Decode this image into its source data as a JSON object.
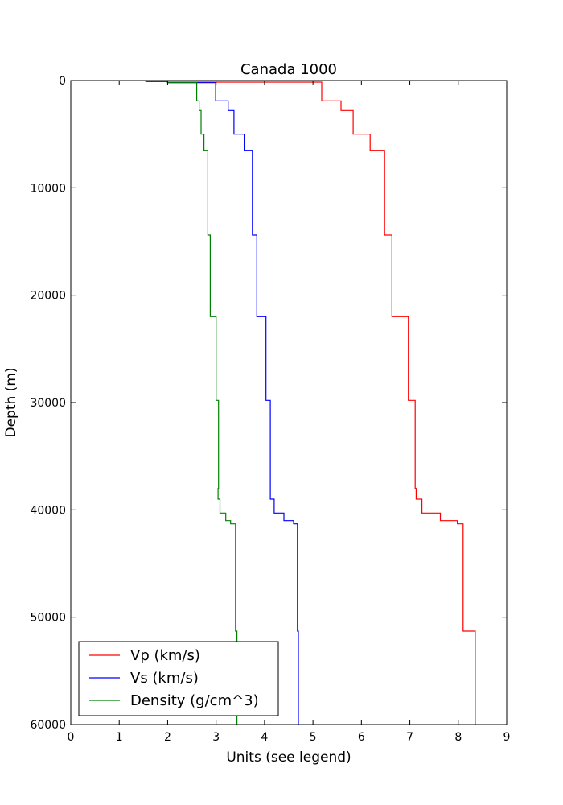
{
  "chart_data": {
    "type": "line",
    "title": "Canada 1000",
    "xlabel": "Units (see legend)",
    "ylabel": "Depth (m)",
    "xlim": [
      0,
      9
    ],
    "ylim": [
      0,
      60000
    ],
    "y_inverted": true,
    "xticks": [
      0,
      1,
      2,
      3,
      4,
      5,
      6,
      7,
      8,
      9
    ],
    "yticks": [
      0,
      10000,
      20000,
      30000,
      40000,
      50000,
      60000
    ],
    "grid": false,
    "legend_position": "lower-left",
    "series": [
      {
        "name": "Vp (km/s)",
        "color": "#ff0000",
        "layers": [
          {
            "top": 0,
            "bottom": 150,
            "value": 2.0
          },
          {
            "top": 150,
            "bottom": 1900,
            "value": 5.18
          },
          {
            "top": 1900,
            "bottom": 2800,
            "value": 5.58
          },
          {
            "top": 2800,
            "bottom": 5000,
            "value": 5.83
          },
          {
            "top": 5000,
            "bottom": 6500,
            "value": 6.18
          },
          {
            "top": 6500,
            "bottom": 14400,
            "value": 6.48
          },
          {
            "top": 14400,
            "bottom": 22000,
            "value": 6.63
          },
          {
            "top": 22000,
            "bottom": 29800,
            "value": 6.97
          },
          {
            "top": 29800,
            "bottom": 38000,
            "value": 7.11
          },
          {
            "top": 38000,
            "bottom": 39000,
            "value": 7.13
          },
          {
            "top": 39000,
            "bottom": 40300,
            "value": 7.25
          },
          {
            "top": 40300,
            "bottom": 41000,
            "value": 7.63
          },
          {
            "top": 41000,
            "bottom": 41300,
            "value": 7.98
          },
          {
            "top": 41300,
            "bottom": 51300,
            "value": 8.1
          },
          {
            "top": 51300,
            "bottom": 60000,
            "value": 8.35
          }
        ]
      },
      {
        "name": "Vs (km/s)",
        "color": "#0000ff",
        "layers": [
          {
            "top": 0,
            "bottom": 100,
            "value": 1.55
          },
          {
            "top": 100,
            "bottom": 200,
            "value": 2.0
          },
          {
            "top": 200,
            "bottom": 1900,
            "value": 2.99
          },
          {
            "top": 1900,
            "bottom": 2800,
            "value": 3.25
          },
          {
            "top": 2800,
            "bottom": 5000,
            "value": 3.37
          },
          {
            "top": 5000,
            "bottom": 6500,
            "value": 3.58
          },
          {
            "top": 6500,
            "bottom": 14400,
            "value": 3.75
          },
          {
            "top": 14400,
            "bottom": 22000,
            "value": 3.84
          },
          {
            "top": 22000,
            "bottom": 29800,
            "value": 4.03
          },
          {
            "top": 29800,
            "bottom": 39000,
            "value": 4.12
          },
          {
            "top": 39000,
            "bottom": 40300,
            "value": 4.2
          },
          {
            "top": 40300,
            "bottom": 41000,
            "value": 4.4
          },
          {
            "top": 41000,
            "bottom": 41300,
            "value": 4.6
          },
          {
            "top": 41300,
            "bottom": 51300,
            "value": 4.68
          },
          {
            "top": 51300,
            "bottom": 60000,
            "value": 4.7
          }
        ]
      },
      {
        "name": "Density (g/cm^3)",
        "color": "#008000",
        "layers": [
          {
            "top": 0,
            "bottom": 200,
            "value": 2.0
          },
          {
            "top": 200,
            "bottom": 1900,
            "value": 2.6
          },
          {
            "top": 1900,
            "bottom": 2800,
            "value": 2.65
          },
          {
            "top": 2800,
            "bottom": 5000,
            "value": 2.69
          },
          {
            "top": 5000,
            "bottom": 6500,
            "value": 2.75
          },
          {
            "top": 6500,
            "bottom": 14400,
            "value": 2.83
          },
          {
            "top": 14400,
            "bottom": 22000,
            "value": 2.88
          },
          {
            "top": 22000,
            "bottom": 29800,
            "value": 3.0
          },
          {
            "top": 29800,
            "bottom": 38000,
            "value": 3.05
          },
          {
            "top": 38000,
            "bottom": 39000,
            "value": 3.04
          },
          {
            "top": 39000,
            "bottom": 40300,
            "value": 3.08
          },
          {
            "top": 40300,
            "bottom": 41000,
            "value": 3.2
          },
          {
            "top": 41000,
            "bottom": 41300,
            "value": 3.3
          },
          {
            "top": 41300,
            "bottom": 51300,
            "value": 3.4
          },
          {
            "top": 51300,
            "bottom": 60000,
            "value": 3.43
          }
        ]
      }
    ]
  }
}
